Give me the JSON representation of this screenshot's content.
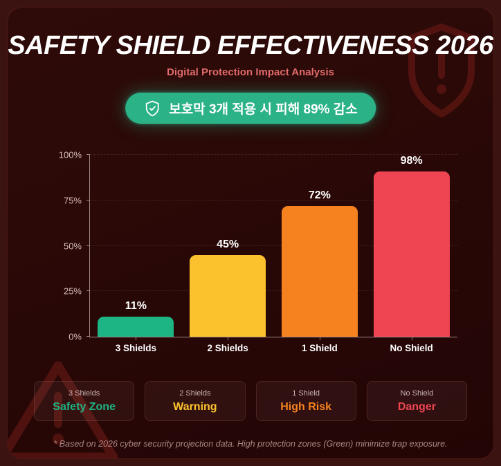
{
  "page": {
    "title": "SAFETY SHIELD EFFECTIVENESS 2026",
    "subtitle": "Digital Protection Impact Analysis",
    "badge_text": "보호막 3개 적용 시 피해 89% 감소",
    "footnote": "* Based on 2026 cyber security projection data. High protection zones (Green) minimize trap exposure."
  },
  "colors": {
    "background_outer": "#3b1411",
    "panel": "#2a0907",
    "title": "#ffffff",
    "subtitle": "#e06a6a",
    "badge_green": "#2bb287",
    "axis": "#9e8585",
    "ytick_label": "#d8bdbd",
    "safe_green": "#1db583",
    "warning_yellow": "#fcc22d",
    "risk_orange": "#f5821f",
    "danger_red": "#ef4452",
    "decor_stroke": "#5a1511"
  },
  "chart_data": {
    "type": "bar",
    "categories": [
      "3 Shields",
      "2 Shields",
      "1 Shield",
      "No Shield"
    ],
    "values": [
      11,
      45,
      72,
      98
    ],
    "value_labels": [
      "11%",
      "45%",
      "72%",
      "98%"
    ],
    "bar_colors": [
      "#1db583",
      "#fcc22d",
      "#f5821f",
      "#ef4452"
    ],
    "title": "SAFETY SHIELD EFFECTIVENESS 2026",
    "xlabel": "",
    "ylabel": "",
    "ylim": [
      0,
      100
    ],
    "yticks": [
      0,
      25,
      50,
      75,
      100
    ],
    "ytick_labels": [
      "0%",
      "25%",
      "50%",
      "75%",
      "100%"
    ],
    "grid": "horizontal-dashed",
    "legend": "none"
  },
  "cards": [
    {
      "label": "3 Shields",
      "value": "Safety Zone",
      "color": "#1db583"
    },
    {
      "label": "2 Shields",
      "value": "Warning",
      "color": "#fcc22d"
    },
    {
      "label": "1 Shield",
      "value": "High Risk",
      "color": "#f5821f"
    },
    {
      "label": "No Shield",
      "value": "Danger",
      "color": "#ef4452"
    }
  ]
}
